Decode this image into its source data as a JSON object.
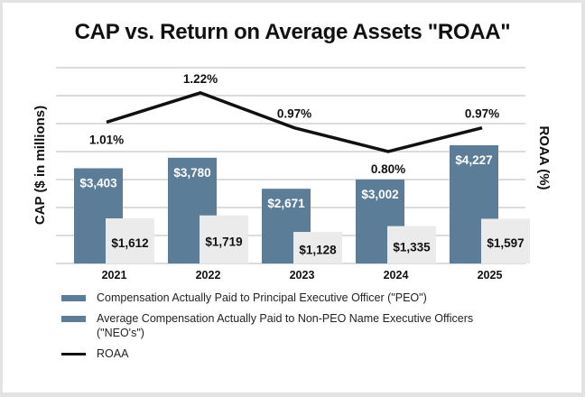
{
  "chart_data": {
    "type": "bar",
    "title": "CAP vs. Return on Average Assets \"ROAA\"",
    "xlabel": "",
    "ylabel": "CAP ($ in millions)",
    "y2label": "ROAA (%)",
    "categories": [
      "2021",
      "2022",
      "2023",
      "2024",
      "2025"
    ],
    "ylim": [
      0,
      7000
    ],
    "y2lim": [
      0,
      1.4
    ],
    "grid": true,
    "legend_position": "bottom",
    "series": [
      {
        "name": "Compensation Actually Paid to Principal Executive Officer (\"PEO\")",
        "type": "bar",
        "axis": "left",
        "color": "#5b7d98",
        "values": [
          3403,
          3780,
          2671,
          3002,
          4227
        ],
        "labels": [
          "$3,403",
          "$3,780",
          "$2,671",
          "$3,002",
          "$4,227"
        ]
      },
      {
        "name": "Average Compensation Actually Paid to Non-PEO Name Executive Officers (\"NEO's\")",
        "type": "bar",
        "axis": "left",
        "color": "#ebebeb",
        "legend_color": "#5b7d98",
        "values": [
          1612,
          1719,
          1128,
          1335,
          1597
        ],
        "labels": [
          "$1,612",
          "$1,719",
          "$1,128",
          "$1,335",
          "$1,597"
        ]
      },
      {
        "name": "ROAA",
        "type": "line",
        "axis": "right",
        "color": "#111111",
        "values": [
          1.01,
          1.22,
          0.97,
          0.8,
          0.97
        ],
        "labels": [
          "1.01%",
          "1.22%",
          "0.97%",
          "0.80%",
          "0.97%"
        ]
      }
    ]
  },
  "legend": {
    "items": [
      {
        "label": "Compensation Actually Paid to Principal Executive Officer (\"PEO\")"
      },
      {
        "label": "Average Compensation Actually Paid to Non-PEO Name Executive Officers (\"NEO's\")"
      },
      {
        "label": "ROAA"
      }
    ]
  }
}
